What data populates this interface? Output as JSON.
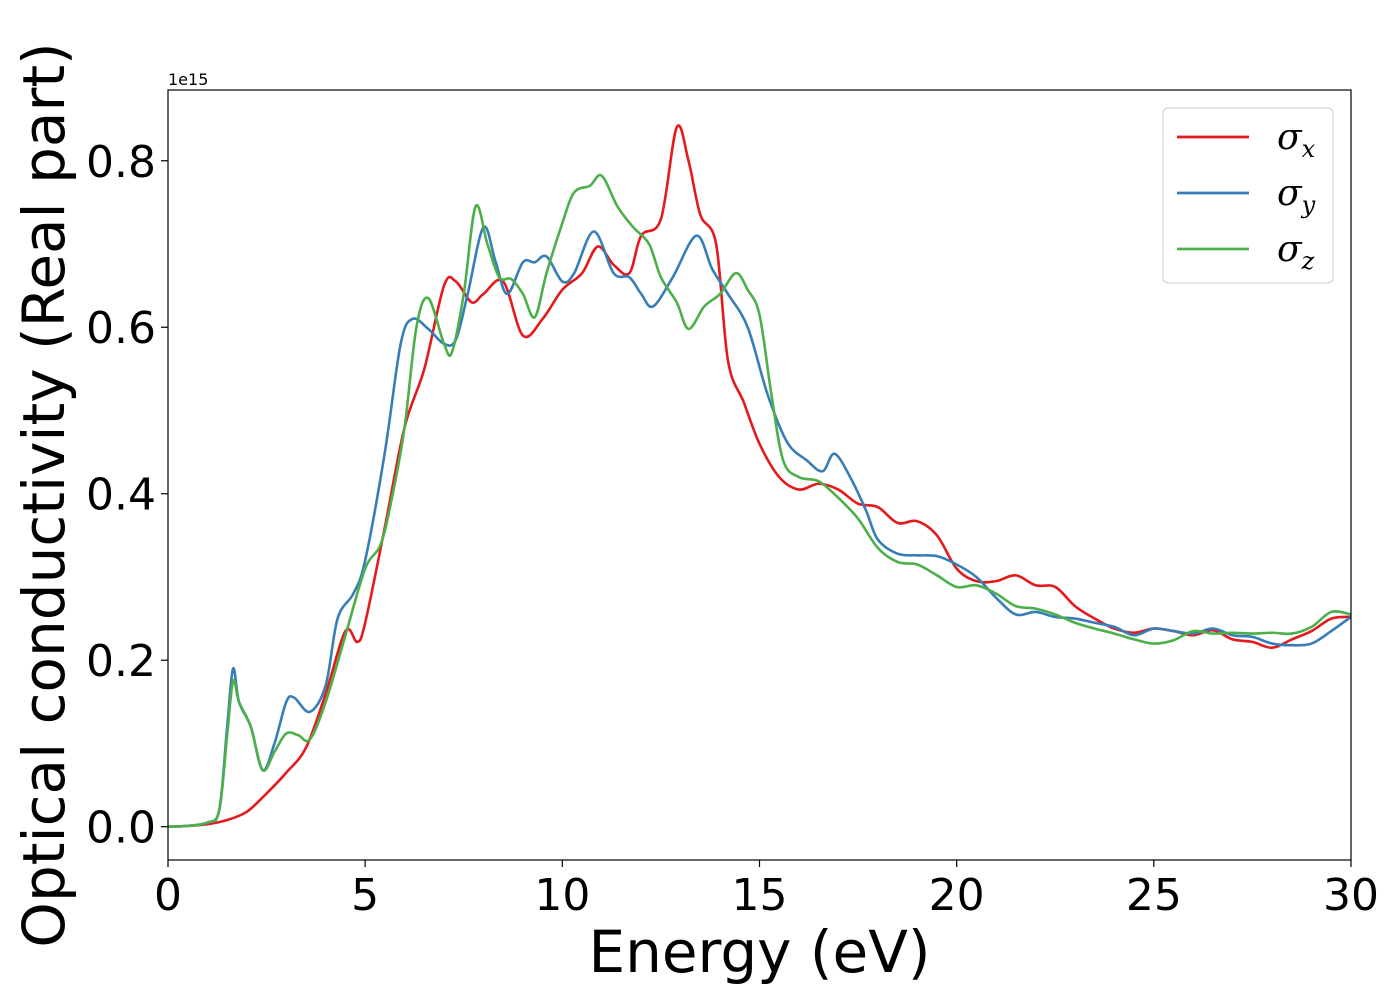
{
  "chart_data": {
    "type": "line",
    "title": "",
    "xlabel": "Energy (eV)",
    "ylabel": "Optical conductivity (Real part)",
    "y_offset_text": "1e15",
    "y_multiplier": 1000000000000000.0,
    "xlim": [
      0,
      30
    ],
    "ylim": [
      -0.04,
      0.885
    ],
    "xticks": [
      0,
      5,
      10,
      15,
      20,
      25,
      30
    ],
    "xtick_labels": [
      "0",
      "5",
      "10",
      "15",
      "20",
      "25",
      "30"
    ],
    "yticks": [
      0.0,
      0.2,
      0.4,
      0.6,
      0.8
    ],
    "ytick_labels": [
      "0.0",
      "0.2",
      "0.4",
      "0.6",
      "0.8"
    ],
    "grid": false,
    "legend_position": "top-right",
    "series": [
      {
        "name": "σx",
        "name_base": "σ",
        "name_sub": "x",
        "color": "#e41a1c",
        "points": [
          [
            0,
            0
          ],
          [
            0.5,
            0.001
          ],
          [
            1.0,
            0.003
          ],
          [
            1.5,
            0.008
          ],
          [
            2.0,
            0.018
          ],
          [
            2.5,
            0.04
          ],
          [
            3.0,
            0.065
          ],
          [
            3.5,
            0.095
          ],
          [
            4.0,
            0.16
          ],
          [
            4.5,
            0.235
          ],
          [
            4.8,
            0.222
          ],
          [
            5.0,
            0.245
          ],
          [
            5.5,
            0.36
          ],
          [
            6.0,
            0.48
          ],
          [
            6.5,
            0.55
          ],
          [
            7.0,
            0.65
          ],
          [
            7.3,
            0.655
          ],
          [
            7.7,
            0.63
          ],
          [
            8.0,
            0.64
          ],
          [
            8.5,
            0.655
          ],
          [
            9.0,
            0.59
          ],
          [
            9.5,
            0.61
          ],
          [
            10.0,
            0.645
          ],
          [
            10.5,
            0.665
          ],
          [
            10.9,
            0.697
          ],
          [
            11.3,
            0.675
          ],
          [
            11.7,
            0.665
          ],
          [
            12.0,
            0.71
          ],
          [
            12.5,
            0.73
          ],
          [
            12.9,
            0.84
          ],
          [
            13.2,
            0.8
          ],
          [
            13.5,
            0.735
          ],
          [
            13.9,
            0.7
          ],
          [
            14.2,
            0.56
          ],
          [
            14.6,
            0.51
          ],
          [
            15.0,
            0.46
          ],
          [
            15.5,
            0.42
          ],
          [
            16.0,
            0.405
          ],
          [
            16.5,
            0.412
          ],
          [
            17.0,
            0.405
          ],
          [
            17.5,
            0.388
          ],
          [
            18.0,
            0.384
          ],
          [
            18.5,
            0.365
          ],
          [
            19.0,
            0.367
          ],
          [
            19.5,
            0.35
          ],
          [
            20.0,
            0.31
          ],
          [
            20.5,
            0.295
          ],
          [
            21.0,
            0.295
          ],
          [
            21.5,
            0.302
          ],
          [
            22.0,
            0.29
          ],
          [
            22.5,
            0.288
          ],
          [
            23.0,
            0.265
          ],
          [
            23.5,
            0.25
          ],
          [
            24.0,
            0.238
          ],
          [
            24.5,
            0.233
          ],
          [
            25.0,
            0.238
          ],
          [
            25.5,
            0.235
          ],
          [
            26.0,
            0.23
          ],
          [
            26.5,
            0.236
          ],
          [
            27.0,
            0.225
          ],
          [
            27.5,
            0.222
          ],
          [
            28.0,
            0.215
          ],
          [
            28.5,
            0.225
          ],
          [
            29.0,
            0.235
          ],
          [
            29.5,
            0.25
          ],
          [
            30.0,
            0.252
          ]
        ]
      },
      {
        "name": "σy",
        "name_base": "σ",
        "name_sub": "y",
        "color": "#377eb8",
        "points": [
          [
            0,
            0
          ],
          [
            0.5,
            0.001
          ],
          [
            1.0,
            0.005
          ],
          [
            1.3,
            0.02
          ],
          [
            1.5,
            0.12
          ],
          [
            1.65,
            0.19
          ],
          [
            1.8,
            0.15
          ],
          [
            2.1,
            0.12
          ],
          [
            2.4,
            0.068
          ],
          [
            2.7,
            0.1
          ],
          [
            3.0,
            0.15
          ],
          [
            3.2,
            0.155
          ],
          [
            3.6,
            0.138
          ],
          [
            4.0,
            0.17
          ],
          [
            4.3,
            0.25
          ],
          [
            4.7,
            0.28
          ],
          [
            5.0,
            0.32
          ],
          [
            5.5,
            0.45
          ],
          [
            5.9,
            0.58
          ],
          [
            6.2,
            0.61
          ],
          [
            6.6,
            0.598
          ],
          [
            7.0,
            0.58
          ],
          [
            7.3,
            0.585
          ],
          [
            7.6,
            0.64
          ],
          [
            8.0,
            0.72
          ],
          [
            8.3,
            0.68
          ],
          [
            8.6,
            0.64
          ],
          [
            9.0,
            0.678
          ],
          [
            9.3,
            0.678
          ],
          [
            9.6,
            0.685
          ],
          [
            10.0,
            0.655
          ],
          [
            10.3,
            0.665
          ],
          [
            10.8,
            0.715
          ],
          [
            11.3,
            0.665
          ],
          [
            11.7,
            0.66
          ],
          [
            12.0,
            0.64
          ],
          [
            12.3,
            0.625
          ],
          [
            12.8,
            0.66
          ],
          [
            13.4,
            0.71
          ],
          [
            13.8,
            0.67
          ],
          [
            14.2,
            0.64
          ],
          [
            14.7,
            0.6
          ],
          [
            15.2,
            0.52
          ],
          [
            15.7,
            0.462
          ],
          [
            16.2,
            0.44
          ],
          [
            16.6,
            0.427
          ],
          [
            16.9,
            0.448
          ],
          [
            17.3,
            0.42
          ],
          [
            17.7,
            0.38
          ],
          [
            18.0,
            0.345
          ],
          [
            18.5,
            0.328
          ],
          [
            19.0,
            0.326
          ],
          [
            19.5,
            0.325
          ],
          [
            20.0,
            0.315
          ],
          [
            20.5,
            0.3
          ],
          [
            21.0,
            0.275
          ],
          [
            21.5,
            0.255
          ],
          [
            22.0,
            0.258
          ],
          [
            22.5,
            0.252
          ],
          [
            23.0,
            0.25
          ],
          [
            23.5,
            0.245
          ],
          [
            24.0,
            0.24
          ],
          [
            24.5,
            0.23
          ],
          [
            25.0,
            0.238
          ],
          [
            25.5,
            0.235
          ],
          [
            26.0,
            0.232
          ],
          [
            26.5,
            0.238
          ],
          [
            27.0,
            0.23
          ],
          [
            27.5,
            0.228
          ],
          [
            28.0,
            0.22
          ],
          [
            28.5,
            0.218
          ],
          [
            29.0,
            0.22
          ],
          [
            29.5,
            0.235
          ],
          [
            30.0,
            0.252
          ]
        ]
      },
      {
        "name": "σz",
        "name_base": "σ",
        "name_sub": "z",
        "color": "#4daf4a",
        "points": [
          [
            0,
            0
          ],
          [
            0.5,
            0.001
          ],
          [
            1.0,
            0.005
          ],
          [
            1.3,
            0.02
          ],
          [
            1.5,
            0.11
          ],
          [
            1.65,
            0.175
          ],
          [
            1.8,
            0.15
          ],
          [
            2.1,
            0.12
          ],
          [
            2.4,
            0.068
          ],
          [
            2.7,
            0.09
          ],
          [
            3.0,
            0.112
          ],
          [
            3.3,
            0.11
          ],
          [
            3.6,
            0.105
          ],
          [
            4.0,
            0.15
          ],
          [
            4.5,
            0.23
          ],
          [
            5.0,
            0.31
          ],
          [
            5.4,
            0.34
          ],
          [
            5.7,
            0.4
          ],
          [
            6.0,
            0.48
          ],
          [
            6.3,
            0.6
          ],
          [
            6.6,
            0.635
          ],
          [
            7.0,
            0.58
          ],
          [
            7.2,
            0.57
          ],
          [
            7.5,
            0.64
          ],
          [
            7.8,
            0.745
          ],
          [
            8.1,
            0.7
          ],
          [
            8.4,
            0.66
          ],
          [
            8.7,
            0.658
          ],
          [
            9.0,
            0.64
          ],
          [
            9.3,
            0.612
          ],
          [
            9.6,
            0.665
          ],
          [
            10.0,
            0.725
          ],
          [
            10.3,
            0.762
          ],
          [
            10.7,
            0.77
          ],
          [
            11.0,
            0.782
          ],
          [
            11.4,
            0.745
          ],
          [
            11.8,
            0.72
          ],
          [
            12.2,
            0.7
          ],
          [
            12.5,
            0.66
          ],
          [
            12.9,
            0.63
          ],
          [
            13.2,
            0.598
          ],
          [
            13.6,
            0.625
          ],
          [
            14.0,
            0.64
          ],
          [
            14.4,
            0.665
          ],
          [
            14.7,
            0.645
          ],
          [
            15.0,
            0.615
          ],
          [
            15.3,
            0.52
          ],
          [
            15.6,
            0.44
          ],
          [
            16.0,
            0.42
          ],
          [
            16.5,
            0.415
          ],
          [
            17.0,
            0.395
          ],
          [
            17.5,
            0.37
          ],
          [
            18.0,
            0.335
          ],
          [
            18.5,
            0.318
          ],
          [
            19.0,
            0.315
          ],
          [
            19.5,
            0.302
          ],
          [
            20.0,
            0.288
          ],
          [
            20.5,
            0.29
          ],
          [
            21.0,
            0.28
          ],
          [
            21.5,
            0.265
          ],
          [
            22.0,
            0.262
          ],
          [
            22.5,
            0.255
          ],
          [
            23.0,
            0.245
          ],
          [
            23.5,
            0.238
          ],
          [
            24.0,
            0.232
          ],
          [
            24.5,
            0.225
          ],
          [
            25.0,
            0.22
          ],
          [
            25.5,
            0.224
          ],
          [
            26.0,
            0.235
          ],
          [
            26.5,
            0.232
          ],
          [
            27.0,
            0.233
          ],
          [
            27.5,
            0.232
          ],
          [
            28.0,
            0.233
          ],
          [
            28.5,
            0.232
          ],
          [
            29.0,
            0.24
          ],
          [
            29.5,
            0.258
          ],
          [
            30.0,
            0.255
          ]
        ]
      }
    ]
  }
}
